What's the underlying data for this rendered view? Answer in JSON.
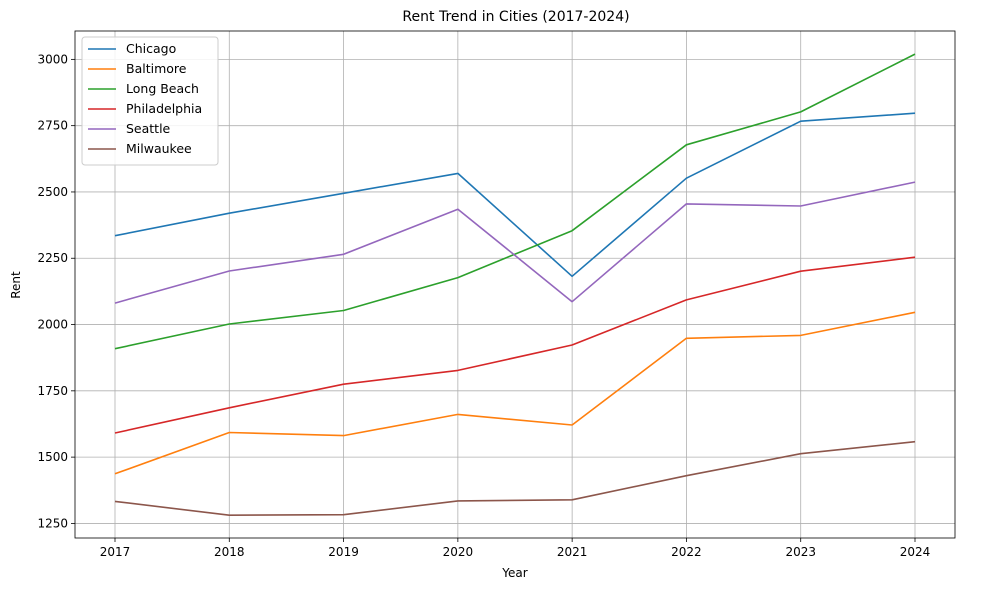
{
  "chart_data": {
    "type": "line",
    "title": "Rent Trend in Cities (2017-2024)",
    "xlabel": "Year",
    "ylabel": "Rent",
    "x": [
      2017,
      2018,
      2019,
      2020,
      2021,
      2022,
      2023,
      2024
    ],
    "x_ticks": [
      "2017",
      "2018",
      "2019",
      "2020",
      "2021",
      "2022",
      "2023",
      "2024"
    ],
    "xlim": [
      2016.65,
      2024.35
    ],
    "ylim": [
      1195,
      3107
    ],
    "y_ticks": [
      1250,
      1500,
      1750,
      2000,
      2250,
      2500,
      2750,
      3000
    ],
    "y_tick_labels": [
      "1250",
      "1500",
      "1750",
      "2000",
      "2250",
      "2500",
      "2750",
      "3000"
    ],
    "grid": true,
    "legend_position": "upper-left",
    "series": [
      {
        "name": "Chicago",
        "color": "#1f77b4",
        "values": [
          2335,
          2420,
          2495,
          2570,
          2182,
          2552,
          2767,
          2797
        ]
      },
      {
        "name": "Baltimore",
        "color": "#ff7f0e",
        "values": [
          1437,
          1593,
          1581,
          1661,
          1621,
          1948,
          1959,
          2046
        ]
      },
      {
        "name": "Long Beach",
        "color": "#2ca02c",
        "values": [
          1909,
          2002,
          2053,
          2177,
          2354,
          2678,
          2802,
          3020
        ]
      },
      {
        "name": "Philadelphia",
        "color": "#d62728",
        "values": [
          1591,
          1686,
          1775,
          1827,
          1923,
          2093,
          2201,
          2254
        ]
      },
      {
        "name": "Seattle",
        "color": "#9467bd",
        "values": [
          2081,
          2202,
          2265,
          2435,
          2086,
          2455,
          2447,
          2537
        ]
      },
      {
        "name": "Milwaukee",
        "color": "#8c564b",
        "values": [
          1333,
          1281,
          1283,
          1335,
          1339,
          1430,
          1513,
          1558
        ]
      }
    ]
  }
}
